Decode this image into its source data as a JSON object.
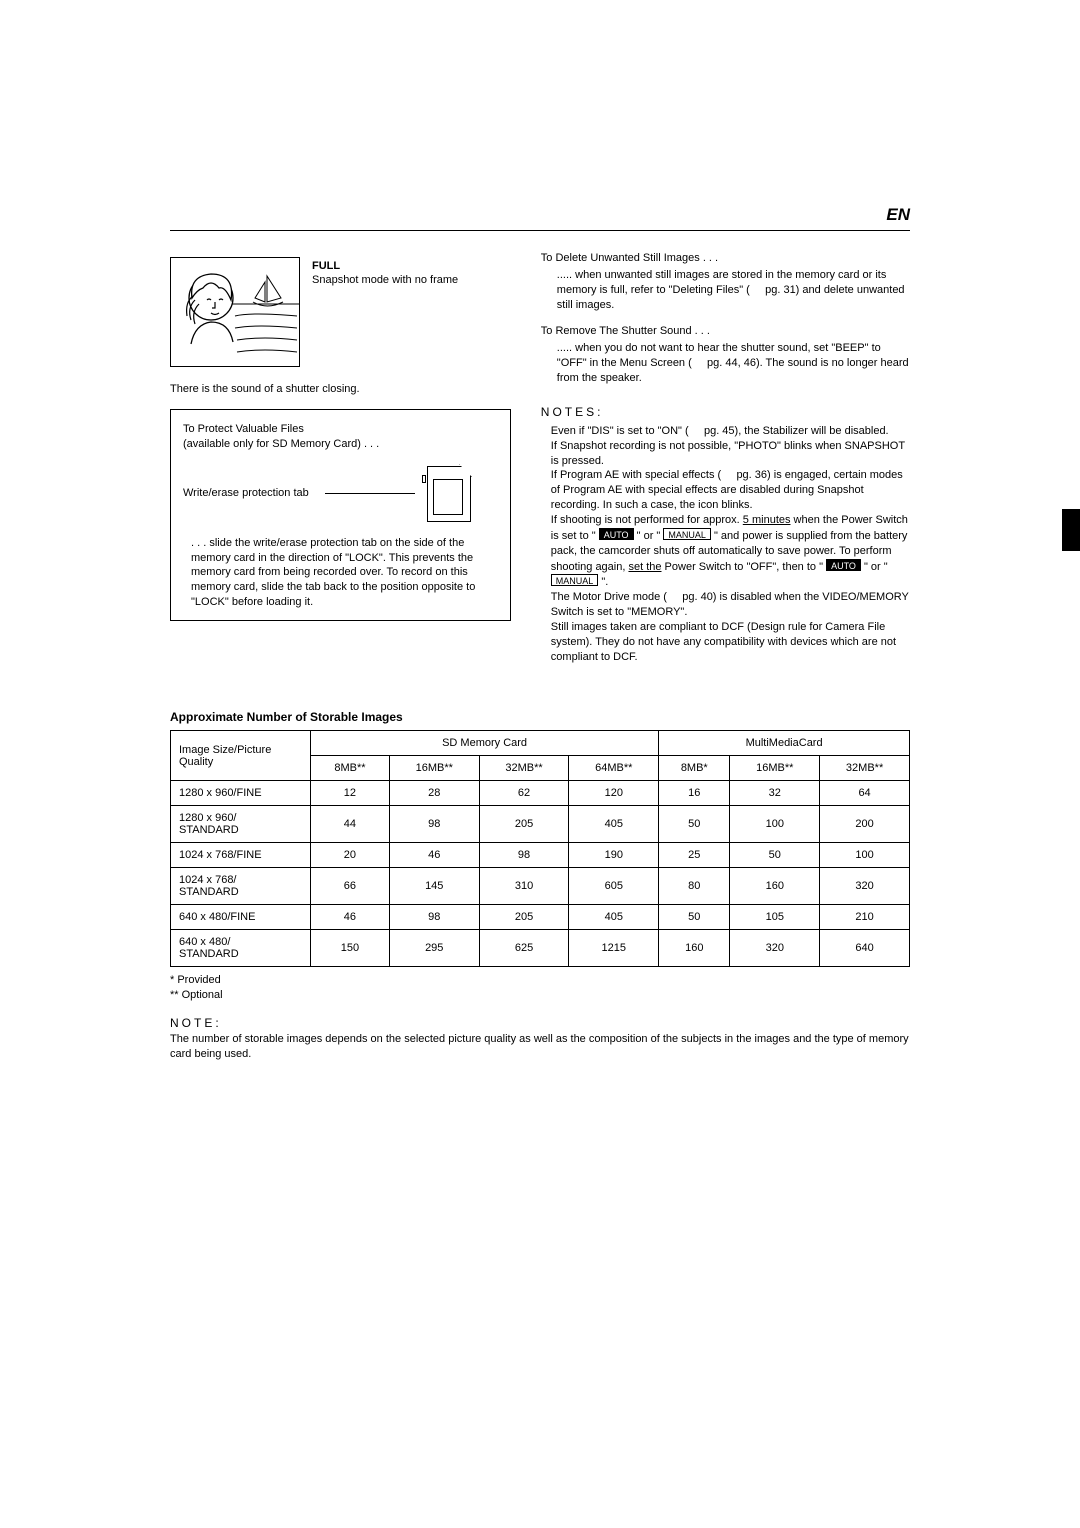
{
  "header": {
    "en": "EN"
  },
  "left": {
    "full_label": "FULL",
    "full_desc": "Snapshot mode with no frame",
    "shutter_text": "There is the sound of a shutter closing.",
    "protect": {
      "title1": "To Protect Valuable Files",
      "title2": "(available only for SD Memory Card) . . .",
      "tab_label": "Write/erase protection tab",
      "desc": ". . . slide the write/erase protection tab on the side of the memory card in the direction of \"LOCK\". This prevents the memory card from being recorded over. To record on this memory card, slide the tab back to the position opposite to \"LOCK\" before loading it."
    }
  },
  "right": {
    "del_title": "To Delete Unwanted Still Images . . .",
    "del_body": "..... when unwanted still images are stored in the memory card or its memory is full, refer to \"Deleting Files\" (     pg. 31) and delete unwanted still images.",
    "shutter_title": "To Remove The Shutter Sound . . .",
    "shutter_body": "..... when you do not want to hear the shutter sound, set \"BEEP\" to \"OFF\" in the Menu Screen (     pg. 44, 46). The sound is no longer heard from the speaker.",
    "notes_hd": "NOTES:",
    "notes": [
      "Even if \"DIS\" is set to \"ON\" (     pg. 45), the Stabilizer will be disabled.",
      "If Snapshot recording is not possible, \"PHOTO\" blinks when SNAPSHOT is pressed.",
      "If Program AE with special effects (     pg. 36) is engaged, certain modes of Program AE with special effects are disabled during Snapshot recording. In such a case, the icon blinks."
    ],
    "note_shoot_pre": "If shooting is not performed for approx. ",
    "note_shoot_underline": "5 minutes",
    "note_shoot_mid1": " when the Power Switch is set to \" ",
    "badge_auto": "AUTO",
    "note_shoot_mid2": " \" or \" ",
    "badge_manual": "MANUAL",
    "note_shoot_mid3": " \" and power is supplied from the battery pack, the camcorder shuts off automatically to save power. To perform shooting again, ",
    "note_shoot_underline2": "set the",
    "note_shoot_mid4": " Power Switch to \"OFF\", then to \" ",
    "note_shoot_mid5": " \" or \" ",
    "note_shoot_end": " \".",
    "note_motor": "The Motor Drive mode (     pg. 40) is disabled when the VIDEO/MEMORY Switch is set to \"MEMORY\".",
    "note_dcf": "Still images taken are compliant to DCF (Design rule for Camera File system). They do not have any compatibility with devices which are not compliant to DCF."
  },
  "table": {
    "title": "Approximate Number of Storable Images",
    "row_header": "Image Size/Picture Quality",
    "group_sd": "SD Memory Card",
    "group_mmc": "MultiMediaCard",
    "cols_sd": [
      "8MB**",
      "16MB**",
      "32MB**",
      "64MB**"
    ],
    "cols_mmc": [
      "8MB*",
      "16MB**",
      "32MB**"
    ],
    "rows": [
      {
        "hdr": "1280 x 960/FINE",
        "vals": [
          "12",
          "28",
          "62",
          "120",
          "16",
          "32",
          "64"
        ]
      },
      {
        "hdr": "1280 x 960/\nSTANDARD",
        "vals": [
          "44",
          "98",
          "205",
          "405",
          "50",
          "100",
          "200"
        ]
      },
      {
        "hdr": "1024 x 768/FINE",
        "vals": [
          "20",
          "46",
          "98",
          "190",
          "25",
          "50",
          "100"
        ]
      },
      {
        "hdr": "1024 x 768/\nSTANDARD",
        "vals": [
          "66",
          "145",
          "310",
          "605",
          "80",
          "160",
          "320"
        ]
      },
      {
        "hdr": "640 x 480/FINE",
        "vals": [
          "46",
          "98",
          "205",
          "405",
          "50",
          "105",
          "210"
        ]
      },
      {
        "hdr": "640 x 480/\nSTANDARD",
        "vals": [
          "150",
          "295",
          "625",
          "1215",
          "160",
          "320",
          "640"
        ]
      }
    ],
    "foot1": "*   Provided",
    "foot2": "**  Optional",
    "note_hd": "NOTE:",
    "note_body": "The number of storable images depends on the selected picture quality as well as the composition of the subjects in the images and the type of memory card being used."
  }
}
